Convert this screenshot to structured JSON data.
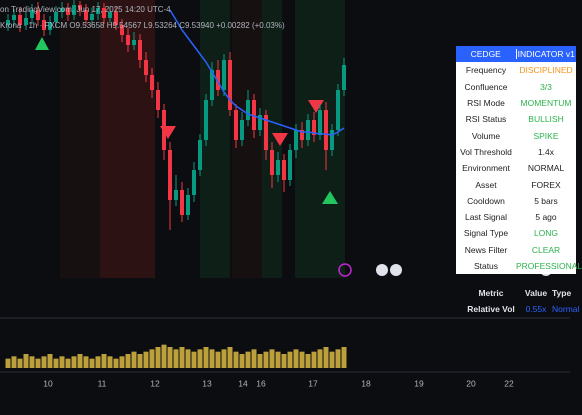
{
  "header": {
    "caption": "on TradingView.com, Jun 17, 2025 14:20 UTC-4",
    "legend": "Krona · 1h · FXCM  O9.53658 H9.54567 L9.53264 C9.53940 +0.00282 (+0.03%)"
  },
  "table": {
    "header": [
      "CEDGE",
      "INDICATOR v1"
    ],
    "rows": [
      [
        "Frequency",
        "DISCIPLINED"
      ],
      [
        "Confluence",
        "3/3"
      ],
      [
        "RSI Mode",
        "MOMENTUM"
      ],
      [
        "RSI Status",
        "BULLISH"
      ],
      [
        "Volume",
        "SPIKE"
      ],
      [
        "Vol Threshold",
        "1.4x"
      ],
      [
        "Environment",
        "NORMAL"
      ],
      [
        "Asset",
        "FOREX"
      ],
      [
        "Cooldown",
        "5 bars"
      ],
      [
        "Last Signal",
        "5 ago"
      ],
      [
        "Signal Type",
        "LONG"
      ],
      [
        "News Filter",
        "CLEAR"
      ],
      [
        "Status",
        "PROFESSIONAL"
      ]
    ]
  },
  "table2": {
    "header": [
      "Metric",
      "Value",
      "Type"
    ],
    "rows": [
      [
        "Relative Vol",
        "0.55x",
        "Normal"
      ]
    ]
  },
  "x_labels": [
    "10",
    "11",
    "12",
    "13",
    "14",
    "16",
    "17",
    "18",
    "19",
    "20",
    "22"
  ],
  "chart_data": {
    "type": "candlestick",
    "up_color": "#089981",
    "down_color": "#f23645",
    "ma_color": "#2962ff",
    "volume_color": "#e8c547",
    "ylim": [
      0,
      300
    ],
    "vlim": [
      0,
      12
    ],
    "open": [
      275,
      280,
      285,
      275,
      282,
      290,
      280,
      270,
      278,
      288,
      292,
      285,
      295,
      290,
      280,
      286,
      292,
      282,
      288,
      275,
      265,
      255,
      260,
      240,
      225,
      210,
      190,
      150,
      100,
      110,
      85,
      105,
      130,
      160,
      200,
      230,
      210,
      240,
      190,
      160,
      180,
      200,
      170,
      185,
      150,
      125,
      140,
      120,
      150,
      170,
      160,
      180,
      165,
      190,
      150,
      170,
      210
    ],
    "high": [
      286,
      291,
      293,
      288,
      296,
      298,
      286,
      284,
      294,
      298,
      297,
      300,
      299,
      296,
      292,
      298,
      297,
      294,
      293,
      281,
      272,
      268,
      266,
      248,
      232,
      218,
      196,
      158,
      125,
      118,
      112,
      138,
      166,
      206,
      238,
      240,
      246,
      248,
      196,
      188,
      210,
      206,
      192,
      190,
      158,
      148,
      146,
      156,
      176,
      178,
      186,
      188,
      196,
      198,
      176,
      216,
      242
    ],
    "low": [
      269,
      274,
      268,
      270,
      276,
      274,
      264,
      265,
      272,
      282,
      279,
      280,
      284,
      274,
      275,
      280,
      276,
      277,
      270,
      258,
      248,
      250,
      232,
      218,
      202,
      182,
      140,
      70,
      94,
      78,
      80,
      98,
      124,
      154,
      194,
      204,
      204,
      184,
      152,
      154,
      174,
      162,
      164,
      140,
      112,
      118,
      108,
      114,
      142,
      152,
      154,
      158,
      160,
      130,
      144,
      164,
      204
    ],
    "close": [
      280,
      285,
      275,
      282,
      290,
      280,
      270,
      278,
      288,
      292,
      285,
      295,
      290,
      280,
      286,
      292,
      282,
      288,
      275,
      265,
      255,
      260,
      240,
      225,
      210,
      190,
      150,
      100,
      110,
      85,
      105,
      130,
      160,
      200,
      230,
      210,
      240,
      190,
      160,
      180,
      200,
      170,
      185,
      150,
      125,
      140,
      120,
      150,
      170,
      160,
      180,
      165,
      190,
      150,
      170,
      210,
      235
    ],
    "ma": [
      null,
      null,
      null,
      null,
      null,
      null,
      null,
      null,
      null,
      null,
      null,
      null,
      null,
      null,
      null,
      null,
      null,
      null,
      null,
      null,
      null,
      null,
      null,
      null,
      null,
      null,
      null,
      290,
      280,
      270,
      262,
      254,
      246,
      238,
      228,
      218,
      208,
      200,
      194,
      190,
      186,
      184,
      182,
      180,
      178,
      176,
      174,
      172,
      170,
      168,
      168,
      167,
      166,
      166,
      165,
      168,
      172
    ],
    "volume": [
      4,
      5,
      4,
      6,
      5,
      4,
      5,
      6,
      4,
      5,
      4,
      5,
      6,
      5,
      4,
      5,
      6,
      5,
      4,
      5,
      6,
      7,
      6,
      7,
      8,
      9,
      10,
      9,
      8,
      9,
      8,
      7,
      8,
      9,
      8,
      7,
      8,
      9,
      7,
      6,
      7,
      8,
      6,
      7,
      8,
      7,
      6,
      7,
      8,
      7,
      6,
      7,
      8,
      9,
      7,
      8,
      9
    ]
  }
}
